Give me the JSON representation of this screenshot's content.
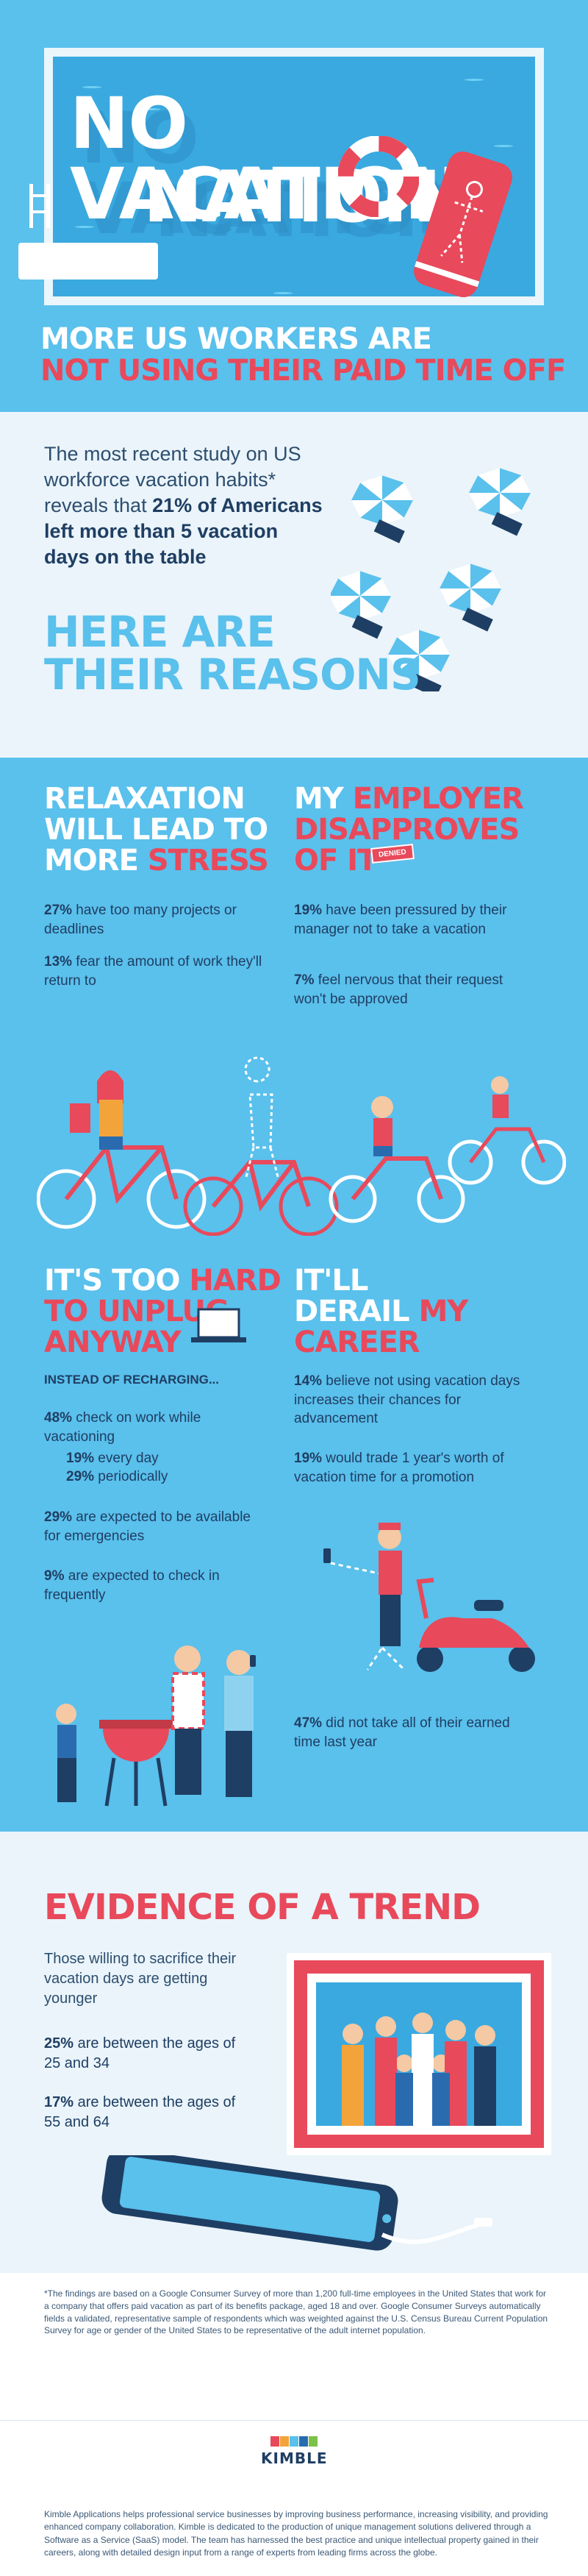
{
  "hero": {
    "title_line1": "NO VACATION",
    "title_line2": "NATION",
    "subhead_line1": "MORE US WORKERS ARE",
    "subhead_line2": "NOT USING THEIR PAID TIME OFF"
  },
  "intro": {
    "text_before": "The most recent study on US workforce vacation habits* reveals that ",
    "text_highlight": "21% of Americans left more than 5 vacation days on the table",
    "reasons_line1": "HERE ARE",
    "reasons_line2": "THEIR REASONS"
  },
  "reasons": {
    "stress": {
      "t1": "RELAXATION",
      "t2": "WILL LEAD TO",
      "t3a": "MORE ",
      "t3b": "STRESS",
      "s1_pct": "27%",
      "s1_text": " have too many projects or deadlines",
      "s2_pct": "13%",
      "s2_text": " fear the amount of work they'll return to"
    },
    "employer": {
      "t1a": "MY ",
      "t1b": "EMPLOYER",
      "t2": "DISAPPROVES",
      "t3": "OF IT",
      "stamp": "DENIED",
      "s1_pct": "19%",
      "s1_text": " have been pressured by their manager not to take a vacation",
      "s2_pct": "7%",
      "s2_text": " feel nervous that their request won't be approved"
    },
    "unplug": {
      "t1a": "IT'S TOO ",
      "t1b": "HARD",
      "t2": "TO UNPLUG",
      "t3": "ANYWAY",
      "sub": "INSTEAD OF RECHARGING...",
      "s1_pct": "48%",
      "s1_text": " check on work while vacationing",
      "s1a_pct": "19%",
      "s1a_text": " every day",
      "s1b_pct": "29%",
      "s1b_text": " periodically",
      "s2_pct": "29%",
      "s2_text": " are expected to be available for emergencies",
      "s3_pct": "9%",
      "s3_text": " are expected to check in frequently"
    },
    "career": {
      "t1": "IT'LL",
      "t2a": "DERAIL ",
      "t2b": "MY",
      "t3": "CAREER",
      "s1_pct": "14%",
      "s1_text": " believe not using vacation days increases their chances for advancement",
      "s2_pct": "19%",
      "s2_text": " would trade 1 year's worth of vacation time for a promotion",
      "s3_pct": "47%",
      "s3_text": " did not take all of their earned time last year"
    }
  },
  "evidence": {
    "title": "EVIDENCE OF A TREND",
    "intro": "Those willing to sacrifice their vacation days are getting younger",
    "s1_pct": "25%",
    "s1_text": " are between the ages of 25 and 34",
    "s2_pct": "17%",
    "s2_text": " are between the ages of 55 and 64"
  },
  "footnote": "*The findings are based on a Google Consumer Survey of more than 1,200 full-time employees in the United States that work for a company that offers paid vacation as part of its benefits package, aged 18 and over. Google Consumer Surveys automatically fields a validated, representative sample of respondents which was weighted against the U.S. Census Bureau Current Population Survey for age or gender of the United States to be representative of the adult internet population.",
  "footer": {
    "logo": "KIMBLE",
    "about": "Kimble Applications helps professional service businesses by improving business performance, increasing visibility, and providing enhanced company collaboration. Kimble is dedicated to the production of unique management solutions delivered through a Software as a Service (SaaS) model. The team has harnessed the best practice and unique intellectual property gained in their careers, along with detailed design input from a range of experts from leading firms across the globe."
  },
  "colors": {
    "sky": "#5ac0ec",
    "navy": "#1f3e63",
    "coral": "#e8495b",
    "pale": "#eaf4fa"
  },
  "icons": [
    "ladder-icon",
    "life-ring-icon",
    "towel-icon",
    "umbrella-icon",
    "bicycle-icon",
    "laptop-icon",
    "grill-icon",
    "scooter-icon",
    "phone-icon",
    "photo-frame-icon"
  ]
}
